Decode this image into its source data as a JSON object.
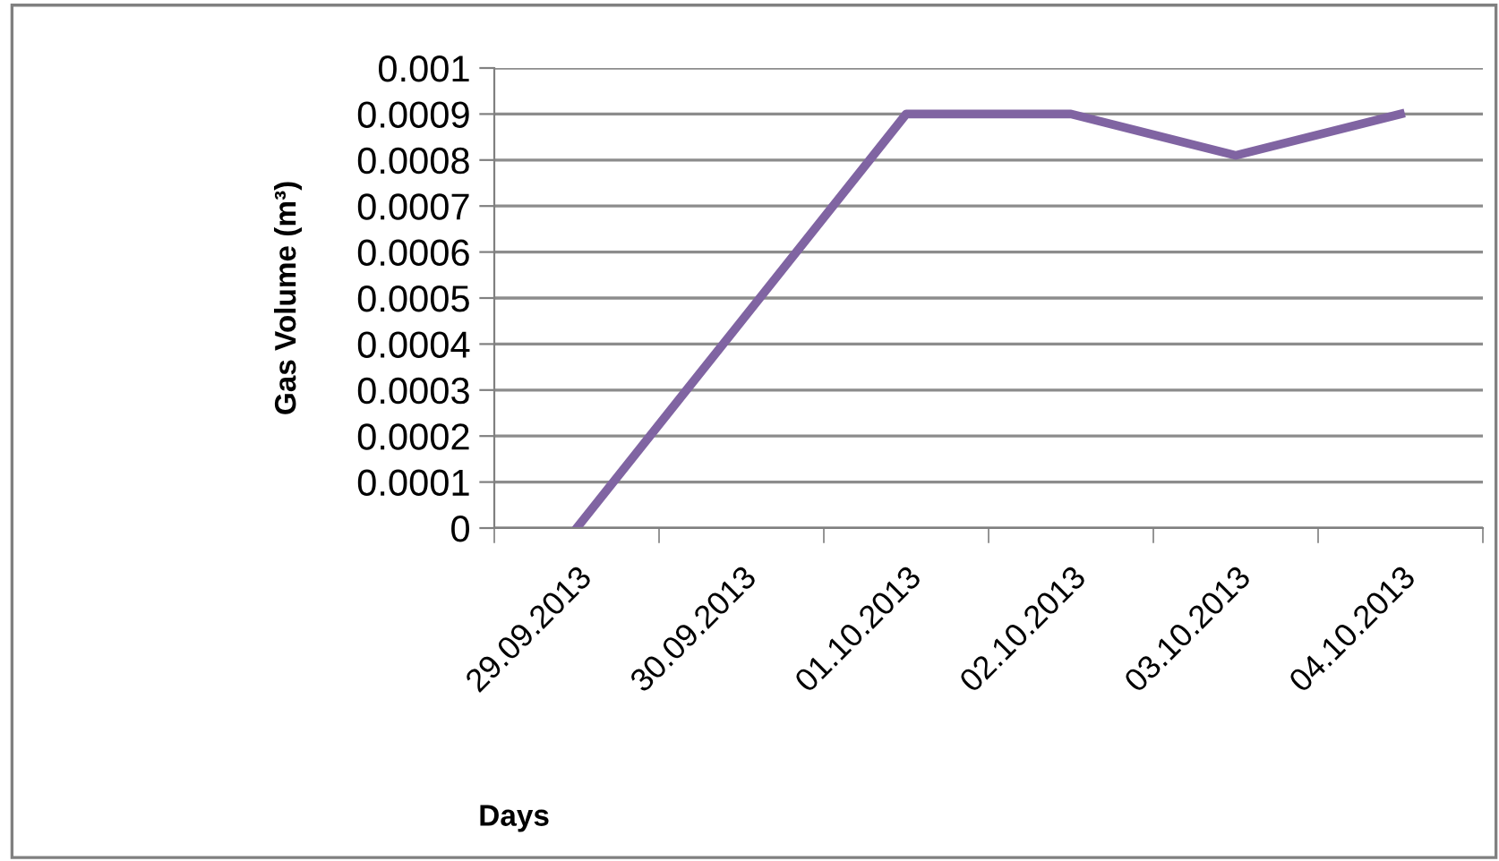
{
  "chart_data": {
    "type": "line",
    "xlabel": "Days",
    "ylabel": "Gas Volume (m³)",
    "categories": [
      "29.09.2013",
      "30.09.2013",
      "01.10.2013",
      "02.10.2013",
      "03.10.2013",
      "04.10.2013"
    ],
    "series": [
      {
        "color": "#8064a2",
        "values": [
          0,
          0.00045,
          0.0009,
          0.0009,
          0.00081,
          0.0009
        ]
      }
    ],
    "ylim": [
      0,
      0.001
    ],
    "yticks": [
      0,
      0.0001,
      0.0002,
      0.0003,
      0.0004,
      0.0005,
      0.0006,
      0.0007,
      0.0008,
      0.0009,
      0.001
    ],
    "grid": "y",
    "marker": "none",
    "line_style": "solid",
    "legend": false
  }
}
